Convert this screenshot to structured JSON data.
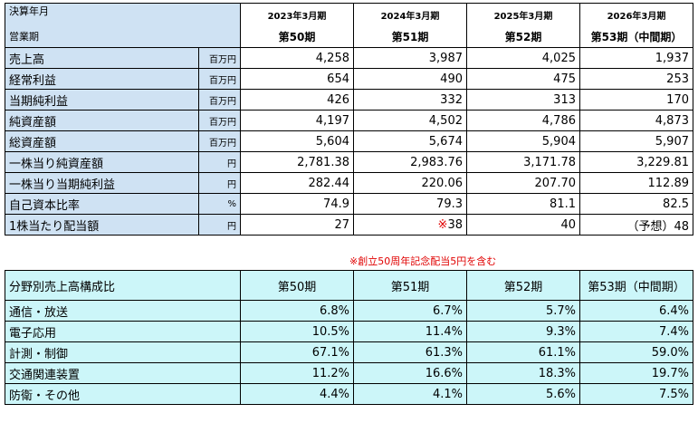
{
  "financials": {
    "header_label_1": "決算年月",
    "header_label_2": "営業期",
    "periods": [
      {
        "year": "2023年3月期",
        "period": "第50期"
      },
      {
        "year": "2024年3月期",
        "period": "第51期"
      },
      {
        "year": "2025年3月期",
        "period": "第52期"
      },
      {
        "year": "2026年3月期",
        "period": "第53期（中間期）"
      }
    ],
    "rows": [
      {
        "label": "売上高",
        "unit": "百万円",
        "values": [
          "4,258",
          "3,987",
          "4,025",
          "1,937"
        ]
      },
      {
        "label": "経常利益",
        "unit": "百万円",
        "values": [
          "654",
          "490",
          "475",
          "253"
        ]
      },
      {
        "label": "当期純利益",
        "unit": "百万円",
        "values": [
          "426",
          "332",
          "313",
          "170"
        ]
      },
      {
        "label": "純資産額",
        "unit": "百万円",
        "values": [
          "4,197",
          "4,502",
          "4,786",
          "4,873"
        ]
      },
      {
        "label": "総資産額",
        "unit": "百万円",
        "values": [
          "5,604",
          "5,674",
          "5,904",
          "5,907"
        ]
      },
      {
        "label": "一株当り純資産額",
        "unit": "円",
        "values": [
          "2,781.38",
          "2,983.76",
          "3,171.78",
          "3,229.81"
        ]
      },
      {
        "label": "一株当り当期純利益",
        "unit": "円",
        "values": [
          "282.44",
          "220.06",
          "207.70",
          "112.89"
        ]
      },
      {
        "label": "自己資本比率",
        "unit": "%",
        "values": [
          "74.9",
          "79.3",
          "81.1",
          "82.5"
        ]
      },
      {
        "label": "1株当たり配当額",
        "unit": "円",
        "values": [
          "27",
          "※38",
          "40",
          "（予想）48"
        ]
      }
    ],
    "note": "※創立50周年記念配当5円を含む"
  },
  "segments": {
    "title": "分野別売上高構成比",
    "periods": [
      "第50期",
      "第51期",
      "第52期",
      "第53期（中間期）"
    ],
    "rows": [
      {
        "label": "通信・放送",
        "values": [
          "6.8%",
          "6.7%",
          "5.7%",
          "6.4%"
        ]
      },
      {
        "label": "電子応用",
        "values": [
          "10.5%",
          "11.4%",
          "9.3%",
          "7.4%"
        ]
      },
      {
        "label": "計測・制御",
        "values": [
          "67.1%",
          "61.3%",
          "61.1%",
          "59.0%"
        ]
      },
      {
        "label": "交通関連装置",
        "values": [
          "11.2%",
          "16.6%",
          "18.3%",
          "19.7%"
        ]
      },
      {
        "label": "防衛・その他",
        "values": [
          "4.4%",
          "4.1%",
          "5.6%",
          "7.5%"
        ]
      }
    ]
  },
  "colors": {
    "label_bg": "#cfe2f3",
    "segment_bg": "#ccf6f9",
    "note": "#e00000"
  }
}
